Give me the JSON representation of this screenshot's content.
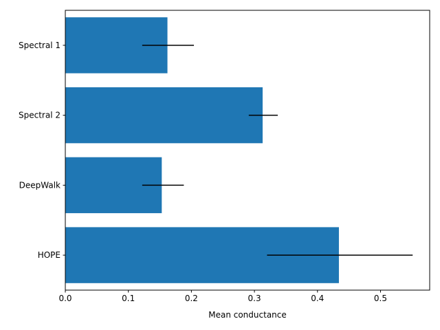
{
  "chart_data": {
    "type": "bar",
    "orientation": "horizontal",
    "title": "",
    "xlabel": "Mean conductance",
    "ylabel": "",
    "categories": [
      "Spectral 1",
      "Spectral 2",
      "DeepWalk",
      "HOPE"
    ],
    "values": [
      0.162,
      0.313,
      0.153,
      0.434
    ],
    "error_low": [
      0.122,
      0.291,
      0.122,
      0.32
    ],
    "error_high": [
      0.204,
      0.337,
      0.188,
      0.551
    ],
    "xlim": [
      0,
      0.578
    ],
    "xticks": [
      0.0,
      0.1,
      0.2,
      0.3,
      0.4,
      0.5
    ],
    "xtick_labels": [
      "0.0",
      "0.1",
      "0.2",
      "0.3",
      "0.4",
      "0.5"
    ],
    "grid": false,
    "bar_color": "#1f77b4",
    "error_color": "#000000"
  }
}
